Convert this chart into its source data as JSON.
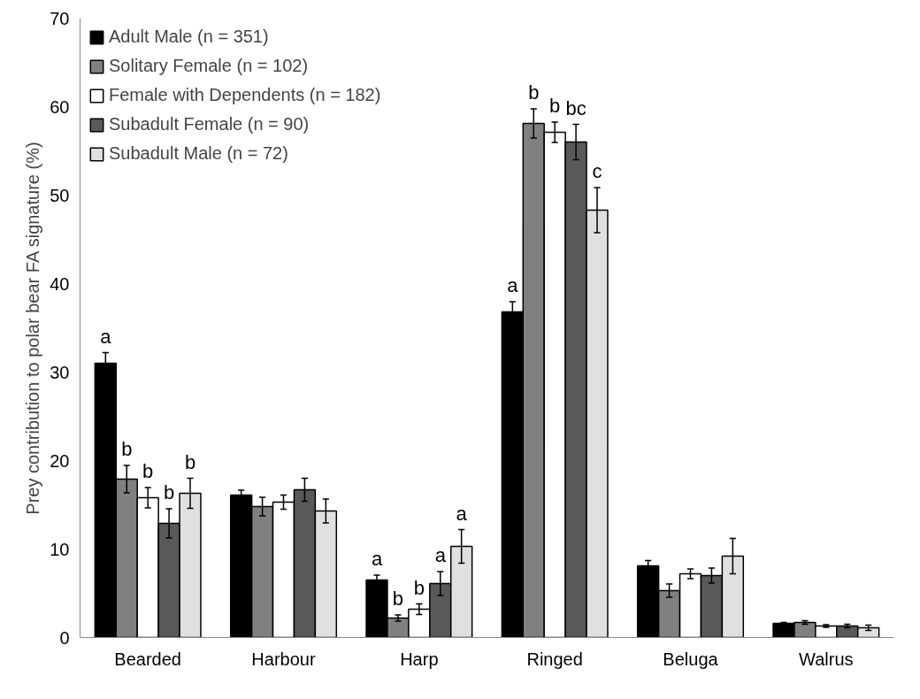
{
  "chart_data": {
    "type": "bar",
    "ylabel": "Prey contribution to polar bear FA signature (%)",
    "categories": [
      "Bearded",
      "Harbour",
      "Harp",
      "Ringed",
      "Beluga",
      "Walrus"
    ],
    "ylim": [
      0,
      70
    ],
    "yticks": [
      0,
      10,
      20,
      30,
      40,
      50,
      60,
      70
    ],
    "grid": false,
    "legend": "top left",
    "series": [
      {
        "name": "Adult Male (n = 351)",
        "color": "#000000",
        "values": [
          31.0,
          16.1,
          6.5,
          36.8,
          8.1,
          1.6
        ],
        "errors": [
          1.2,
          0.55,
          0.55,
          1.15,
          0.6,
          0.1
        ],
        "value_labels": [
          "a",
          null,
          "a",
          "a",
          null,
          null
        ]
      },
      {
        "name": "Solitary Female (n = 102)",
        "color": "#808080",
        "values": [
          17.9,
          14.8,
          2.2,
          58.1,
          5.3,
          1.7
        ],
        "errors": [
          1.55,
          1.05,
          0.35,
          1.65,
          0.75,
          0.2
        ],
        "value_labels": [
          "b",
          null,
          "b",
          "b",
          null,
          null
        ]
      },
      {
        "name": "Female with Dependents (n = 182)",
        "color": "#ffffff",
        "values": [
          15.8,
          15.3,
          3.2,
          57.1,
          7.2,
          1.3
        ],
        "errors": [
          1.15,
          0.8,
          0.6,
          1.15,
          0.55,
          0.15
        ],
        "value_labels": [
          "b",
          null,
          "b",
          "b",
          null,
          null
        ]
      },
      {
        "name": "Subadult Female (n = 90)",
        "color": "#595959",
        "values": [
          12.9,
          16.7,
          6.1,
          56.0,
          7.0,
          1.3
        ],
        "errors": [
          1.65,
          1.3,
          1.35,
          2.0,
          0.85,
          0.2
        ],
        "value_labels": [
          "b",
          null,
          "a",
          "bc",
          null,
          null
        ]
      },
      {
        "name": "Subadult Male (n = 72)",
        "color": "#e0e0e0",
        "values": [
          16.3,
          14.3,
          10.3,
          48.3,
          9.2,
          1.1
        ],
        "errors": [
          1.7,
          1.35,
          1.9,
          2.55,
          2.0,
          0.3
        ],
        "value_labels": [
          "b",
          null,
          "a",
          "c",
          null,
          null
        ]
      }
    ]
  }
}
